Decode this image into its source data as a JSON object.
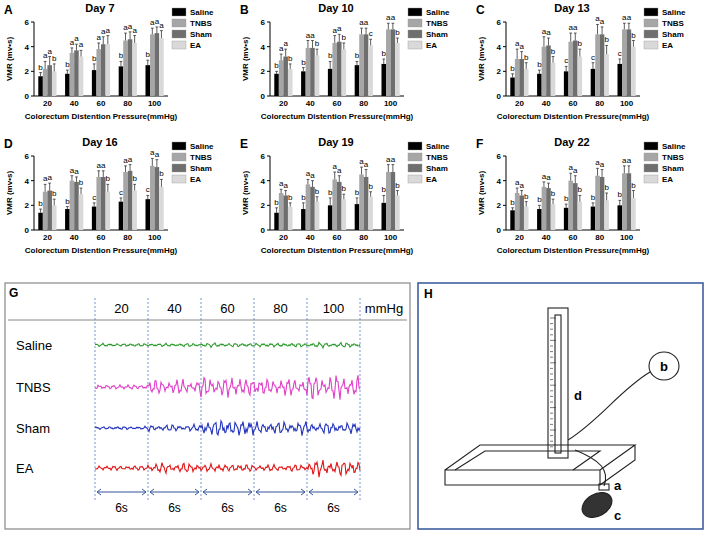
{
  "chart_data": [
    {
      "type": "bar",
      "panel_label": "A",
      "title": "Day 7",
      "x_label": "Colorectum Distention Pressure(mmHg)",
      "y_label": "VMR (mv•s)",
      "categories": [
        "20",
        "40",
        "60",
        "80",
        "100"
      ],
      "ylim": [
        0,
        6
      ],
      "yticks": [
        0,
        2,
        4,
        6
      ],
      "legend": "right",
      "series": [
        {
          "name": "Saline",
          "color": "#000000",
          "values": [
            1.6,
            1.8,
            2.1,
            2.4,
            2.5
          ],
          "errors": [
            0.3,
            0.3,
            0.5,
            0.4,
            0.4
          ],
          "letters": [
            "b",
            "b",
            "b",
            "b",
            "b"
          ]
        },
        {
          "name": "TNBS",
          "color": "#a6a6a6",
          "values": [
            2.2,
            3.5,
            3.8,
            4.5,
            5.0
          ],
          "errors": [
            0.6,
            0.4,
            0.5,
            0.6,
            0.5
          ],
          "letters": [
            "a",
            "a",
            "a",
            "a",
            "a"
          ]
        },
        {
          "name": "Sham",
          "color": "#6e6e6e",
          "values": [
            2.5,
            3.7,
            4.2,
            4.6,
            5.1
          ],
          "errors": [
            0.7,
            0.5,
            0.6,
            0.6,
            0.5
          ],
          "letters": [
            "a",
            "a",
            "a",
            "a",
            "a"
          ]
        },
        {
          "name": "EA",
          "color": "#d9d9d9",
          "values": [
            2.0,
            3.2,
            4.2,
            4.3,
            4.7
          ],
          "errors": [
            0.6,
            0.5,
            0.7,
            0.6,
            0.6
          ],
          "letters": [
            "b",
            "a",
            "a",
            "a",
            "a"
          ]
        }
      ]
    },
    {
      "type": "bar",
      "panel_label": "B",
      "title": "Day 10",
      "x_label": "Colorectum Distention Pressure(mmHg)",
      "y_label": "VMR (mv•s)",
      "categories": [
        "20",
        "40",
        "60",
        "80",
        "100"
      ],
      "ylim": [
        0,
        6
      ],
      "yticks": [
        0,
        2,
        4,
        6
      ],
      "legend": "right",
      "series": [
        {
          "name": "Saline",
          "color": "#000000",
          "values": [
            1.8,
            2.0,
            2.2,
            2.5,
            2.6
          ],
          "errors": [
            0.2,
            0.3,
            0.6,
            0.3,
            0.4
          ],
          "letters": [
            "b",
            "b",
            "b",
            "b",
            "b"
          ]
        },
        {
          "name": "TNBS",
          "color": "#a6a6a6",
          "values": [
            2.9,
            3.9,
            4.3,
            5.0,
            5.4
          ],
          "errors": [
            0.5,
            0.6,
            0.6,
            0.5,
            0.5
          ],
          "letters": [
            "a",
            "a",
            "a",
            "a",
            "a"
          ]
        },
        {
          "name": "Sham",
          "color": "#6e6e6e",
          "values": [
            3.2,
            3.9,
            4.4,
            5.0,
            5.4
          ],
          "errors": [
            0.6,
            0.6,
            0.6,
            0.5,
            0.5
          ],
          "letters": [
            "a",
            "a",
            "a",
            "a",
            "a"
          ]
        },
        {
          "name": "EA",
          "color": "#d9d9d9",
          "values": [
            2.2,
            3.3,
            3.8,
            4.1,
            4.3
          ],
          "errors": [
            0.4,
            0.5,
            0.5,
            0.5,
            0.4
          ],
          "letters": [
            "b",
            "b",
            "b",
            "c",
            "b"
          ]
        }
      ]
    },
    {
      "type": "bar",
      "panel_label": "C",
      "title": "Day 13",
      "x_label": "Colorectum Distention Pressure(mmHg)",
      "y_label": "VMR (mv•s)",
      "categories": [
        "20",
        "40",
        "60",
        "80",
        "100"
      ],
      "ylim": [
        0,
        6
      ],
      "yticks": [
        0,
        2,
        4,
        6
      ],
      "legend": "right",
      "series": [
        {
          "name": "Saline",
          "color": "#000000",
          "values": [
            1.5,
            1.8,
            2.0,
            2.2,
            2.6
          ],
          "errors": [
            0.3,
            0.3,
            0.4,
            0.5,
            0.4
          ],
          "letters": [
            "b",
            "b",
            "c",
            "c",
            "c"
          ]
        },
        {
          "name": "TNBS",
          "color": "#a6a6a6",
          "values": [
            3.0,
            4.0,
            4.4,
            5.0,
            5.4
          ],
          "errors": [
            0.8,
            0.8,
            0.7,
            0.8,
            0.5
          ],
          "letters": [
            "a",
            "a",
            "a",
            "a",
            "a"
          ]
        },
        {
          "name": "Sham",
          "color": "#6e6e6e",
          "values": [
            3.0,
            4.1,
            4.5,
            5.0,
            5.4
          ],
          "errors": [
            0.6,
            0.6,
            0.6,
            0.6,
            0.5
          ],
          "letters": [
            "a",
            "a",
            "a",
            "a",
            "a"
          ]
        },
        {
          "name": "EA",
          "color": "#d9d9d9",
          "values": [
            2.2,
            2.7,
            3.2,
            3.4,
            4.0
          ],
          "errors": [
            0.5,
            0.5,
            0.6,
            0.7,
            0.5
          ],
          "letters": [
            "b",
            "b",
            "b",
            "b",
            "b"
          ]
        }
      ]
    },
    {
      "type": "bar",
      "panel_label": "D",
      "title": "Day 16",
      "x_label": "Colorectum Distention Pressure(mmHg)",
      "y_label": "VMR (mv•s)",
      "categories": [
        "20",
        "40",
        "60",
        "80",
        "100"
      ],
      "ylim": [
        0,
        6
      ],
      "yticks": [
        0,
        2,
        4,
        6
      ],
      "legend": "right",
      "series": [
        {
          "name": "Saline",
          "color": "#000000",
          "values": [
            1.4,
            1.7,
            1.9,
            2.3,
            2.5
          ],
          "errors": [
            0.3,
            0.2,
            0.3,
            0.3,
            0.3
          ],
          "letters": [
            "b",
            "b",
            "c",
            "c",
            "c"
          ]
        },
        {
          "name": "TNBS",
          "color": "#a6a6a6",
          "values": [
            3.1,
            4.0,
            4.3,
            4.7,
            5.2
          ],
          "errors": [
            0.6,
            0.4,
            0.5,
            0.5,
            0.6
          ],
          "letters": [
            "a",
            "a",
            "a",
            "a",
            "a"
          ]
        },
        {
          "name": "Sham",
          "color": "#6e6e6e",
          "values": [
            3.2,
            3.9,
            4.3,
            4.8,
            5.1
          ],
          "errors": [
            0.6,
            0.4,
            0.5,
            0.5,
            0.6
          ],
          "letters": [
            "a",
            "a",
            "a",
            "a",
            "a"
          ]
        },
        {
          "name": "EA",
          "color": "#d9d9d9",
          "values": [
            2.0,
            2.9,
            3.1,
            3.2,
            3.5
          ],
          "errors": [
            0.5,
            0.5,
            0.6,
            0.5,
            0.6
          ],
          "letters": [
            "b",
            "b",
            "b",
            "b",
            "b"
          ]
        }
      ]
    },
    {
      "type": "bar",
      "panel_label": "E",
      "title": "Day 19",
      "x_label": "Colorectum Distention Pressure(mmHg)",
      "y_label": "VMR (mv•s)",
      "categories": [
        "20",
        "40",
        "60",
        "80",
        "100"
      ],
      "ylim": [
        0,
        6
      ],
      "yticks": [
        0,
        2,
        4,
        6
      ],
      "legend": "right",
      "series": [
        {
          "name": "Saline",
          "color": "#000000",
          "values": [
            1.4,
            1.7,
            2.0,
            2.1,
            2.2
          ],
          "errors": [
            0.4,
            0.5,
            0.6,
            0.5,
            0.6
          ],
          "letters": [
            "b",
            "b",
            "b",
            "b",
            "b"
          ]
        },
        {
          "name": "TNBS",
          "color": "#a6a6a6",
          "values": [
            3.0,
            3.7,
            4.1,
            4.5,
            4.7
          ],
          "errors": [
            0.3,
            0.4,
            0.6,
            0.6,
            0.6
          ],
          "letters": [
            "a",
            "a",
            "a",
            "a",
            "a"
          ]
        },
        {
          "name": "Sham",
          "color": "#6e6e6e",
          "values": [
            2.8,
            3.5,
            3.9,
            4.3,
            4.7
          ],
          "errors": [
            0.4,
            0.5,
            0.5,
            0.6,
            0.6
          ],
          "letters": [
            "a",
            "a",
            "a",
            "a",
            "a"
          ]
        },
        {
          "name": "EA",
          "color": "#d9d9d9",
          "values": [
            1.9,
            2.3,
            2.5,
            2.7,
            2.8
          ],
          "errors": [
            0.3,
            0.4,
            0.4,
            0.4,
            0.4
          ],
          "letters": [
            "b",
            "b",
            "b",
            "b",
            "b"
          ]
        }
      ]
    },
    {
      "type": "bar",
      "panel_label": "F",
      "title": "Day 22",
      "x_label": "Colorectum Distention Pressure(mmHg)",
      "y_label": "VMR (mv•s)",
      "categories": [
        "20",
        "40",
        "60",
        "80",
        "100"
      ],
      "ylim": [
        0,
        6
      ],
      "yticks": [
        0,
        2,
        4,
        6
      ],
      "legend": "right",
      "series": [
        {
          "name": "Saline",
          "color": "#000000",
          "values": [
            1.6,
            1.7,
            1.8,
            1.9,
            2.0
          ],
          "errors": [
            0.2,
            0.3,
            0.3,
            0.3,
            0.4
          ],
          "letters": [
            "b",
            "b",
            "b",
            "b",
            "b"
          ]
        },
        {
          "name": "TNBS",
          "color": "#a6a6a6",
          "values": [
            3.0,
            3.5,
            4.0,
            4.4,
            4.6
          ],
          "errors": [
            0.4,
            0.4,
            0.6,
            0.6,
            0.6
          ],
          "letters": [
            "a",
            "a",
            "a",
            "a",
            "a"
          ]
        },
        {
          "name": "Sham",
          "color": "#6e6e6e",
          "values": [
            2.8,
            3.4,
            3.8,
            4.3,
            4.6
          ],
          "errors": [
            0.4,
            0.4,
            0.6,
            0.6,
            0.6
          ],
          "letters": [
            "a",
            "a",
            "a",
            "a",
            "a"
          ]
        },
        {
          "name": "EA",
          "color": "#d9d9d9",
          "values": [
            1.9,
            2.1,
            2.3,
            2.4,
            2.6
          ],
          "errors": [
            0.4,
            0.4,
            0.5,
            0.6,
            0.6
          ],
          "letters": [
            "b",
            "b",
            "b",
            "b",
            "b"
          ]
        }
      ]
    }
  ],
  "recording": {
    "panel_label": "G",
    "pressures": [
      20,
      40,
      60,
      80,
      100
    ],
    "unit": "mmHg",
    "groups": [
      {
        "name": "Saline",
        "color": "#2e9a2e"
      },
      {
        "name": "TNBS",
        "color": "#e040c8"
      },
      {
        "name": "Sham",
        "color": "#2233bb"
      },
      {
        "name": "EA",
        "color": "#e01414"
      }
    ],
    "durations": [
      "6s",
      "6s",
      "6s",
      "6s",
      "6s"
    ]
  },
  "apparatus": {
    "panel_label": "H",
    "parts": [
      "a",
      "b",
      "c",
      "d"
    ]
  }
}
